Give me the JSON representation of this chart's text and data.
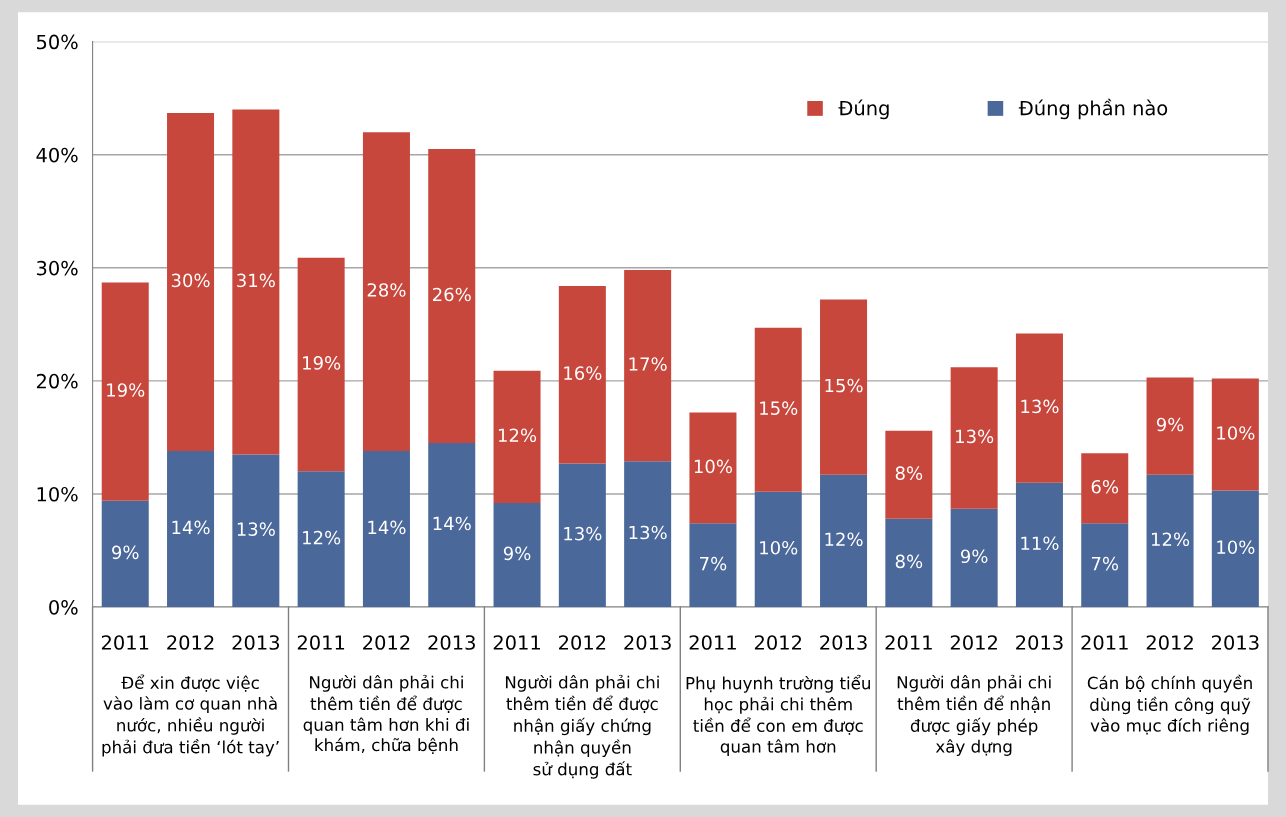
{
  "chart_data": {
    "type": "bar",
    "stacked": true,
    "categories": [
      "2011",
      "2012",
      "2013",
      "2011",
      "2012",
      "2013",
      "2011",
      "2012",
      "2013",
      "2011",
      "2012",
      "2013",
      "2011",
      "2012",
      "2013",
      "2011",
      "2012",
      "2013"
    ],
    "series": [
      {
        "name": "Đúng phần nào",
        "color": "#4a6899",
        "values": [
          9.4,
          13.8,
          13.5,
          12.0,
          13.8,
          14.5,
          9.2,
          12.7,
          12.9,
          7.4,
          10.2,
          11.7,
          7.8,
          8.7,
          11.0,
          7.4,
          11.7,
          10.3
        ],
        "value_labels": [
          "9%",
          "14%",
          "13%",
          "12%",
          "14%",
          "14%",
          "9%",
          "13%",
          "13%",
          "7%",
          "10%",
          "12%",
          "8%",
          "9%",
          "11%",
          "7%",
          "12%",
          "10%"
        ]
      },
      {
        "name": "Đúng",
        "color": "#c8473d",
        "values": [
          19.3,
          29.9,
          30.5,
          18.9,
          28.2,
          26.0,
          11.7,
          15.7,
          16.9,
          9.8,
          14.5,
          15.5,
          7.8,
          12.5,
          13.2,
          6.2,
          8.6,
          9.9
        ],
        "value_labels": [
          "19%",
          "30%",
          "31%",
          "19%",
          "28%",
          "26%",
          "12%",
          "16%",
          "17%",
          "10%",
          "15%",
          "15%",
          "8%",
          "13%",
          "13%",
          "6%",
          "9%",
          "10%"
        ]
      }
    ],
    "ylim": [
      0,
      50
    ],
    "yticks": [
      {
        "value": 0,
        "label": "0%"
      },
      {
        "value": 10,
        "label": "10%"
      },
      {
        "value": 20,
        "label": "20%"
      },
      {
        "value": 30,
        "label": "30%"
      },
      {
        "value": 40,
        "label": "40%"
      },
      {
        "value": 50,
        "label": "50%"
      }
    ],
    "grid": "y",
    "legend": "top right",
    "annotations": [
      "Để xin được việc\nvào làm cơ quan nhà\nnước, nhiều người\nphải đưa tiền ‘lót tay’",
      "Người dân phải chi\nthêm tiền để được\nquan tâm hơn khi đi\nkhám, chữa bệnh",
      "Người dân phải chi\nthêm tiền để được\nnhận giấy chứng\nnhận quyền\nsử dụng đất",
      "Phụ huynh trường tiểu\nhọc phải chi thêm\ntiền để con em được\nquan tâm hơn",
      "Người dân phải chi\nthêm tiền để nhận\nđược giấy phép\nxây dựng",
      "Cán bộ chính quyền\ndùng tiền công quỹ\nvào mục đích riêng"
    ]
  }
}
